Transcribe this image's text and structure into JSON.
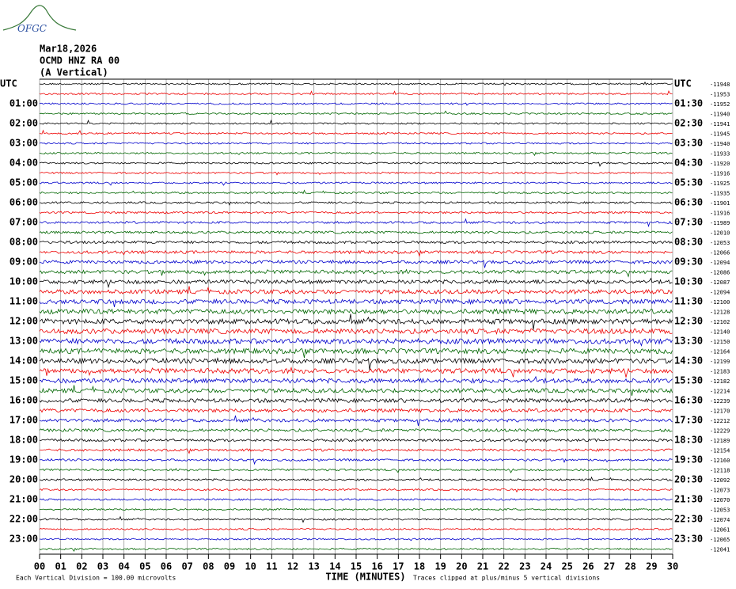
{
  "header": {
    "logo": "OFGC",
    "date": "Mar18,2026",
    "station": "OCMD HNZ RA 00",
    "component": "(A Vertical)"
  },
  "left_labels": [
    "UTC",
    "01:00",
    "02:00",
    "03:00",
    "04:00",
    "05:00",
    "06:00",
    "07:00",
    "08:00",
    "09:00",
    "10:00",
    "11:00",
    "12:00",
    "13:00",
    "14:00",
    "15:00",
    "16:00",
    "17:00",
    "18:00",
    "19:00",
    "20:00",
    "21:00",
    "22:00",
    "23:00"
  ],
  "right_labels": [
    "UTC",
    "01:30",
    "02:30",
    "03:30",
    "04:30",
    "05:30",
    "06:30",
    "07:30",
    "08:30",
    "09:30",
    "10:30",
    "11:30",
    "12:30",
    "13:30",
    "14:30",
    "15:30",
    "16:30",
    "17:30",
    "18:30",
    "19:30",
    "20:30",
    "21:30",
    "22:30",
    "23:30"
  ],
  "offsets": [
    -11948,
    -11953,
    -11952,
    -11940,
    -11941,
    -11945,
    -11940,
    -11933,
    -11920,
    -11916,
    -11925,
    -11935,
    -11901,
    -11916,
    -11989,
    -12010,
    -12053,
    -12066,
    -12094,
    -12086,
    -12087,
    -12094,
    -12100,
    -12128,
    -12102,
    -12140,
    -12150,
    -12164,
    -12199,
    -12183,
    -12182,
    -12214,
    -12239,
    -12170,
    -12212,
    -12229,
    -12189,
    -12154,
    -12160,
    -12118,
    -12092,
    -12073,
    -12070,
    -12053,
    -12074,
    -12061,
    -12065,
    -12041
  ],
  "x_ticks": [
    "00",
    "01",
    "02",
    "03",
    "04",
    "05",
    "06",
    "07",
    "08",
    "09",
    "10",
    "11",
    "12",
    "13",
    "14",
    "15",
    "16",
    "17",
    "18",
    "19",
    "20",
    "21",
    "22",
    "23",
    "24",
    "25",
    "26",
    "27",
    "28",
    "29",
    "30"
  ],
  "footer": {
    "scale": "Each Vertical Division =  100.00 microvolts",
    "axis_title": "TIME (MINUTES)",
    "clip_note": "Traces clipped at plus/minus 5 vertical divisions"
  }
}
